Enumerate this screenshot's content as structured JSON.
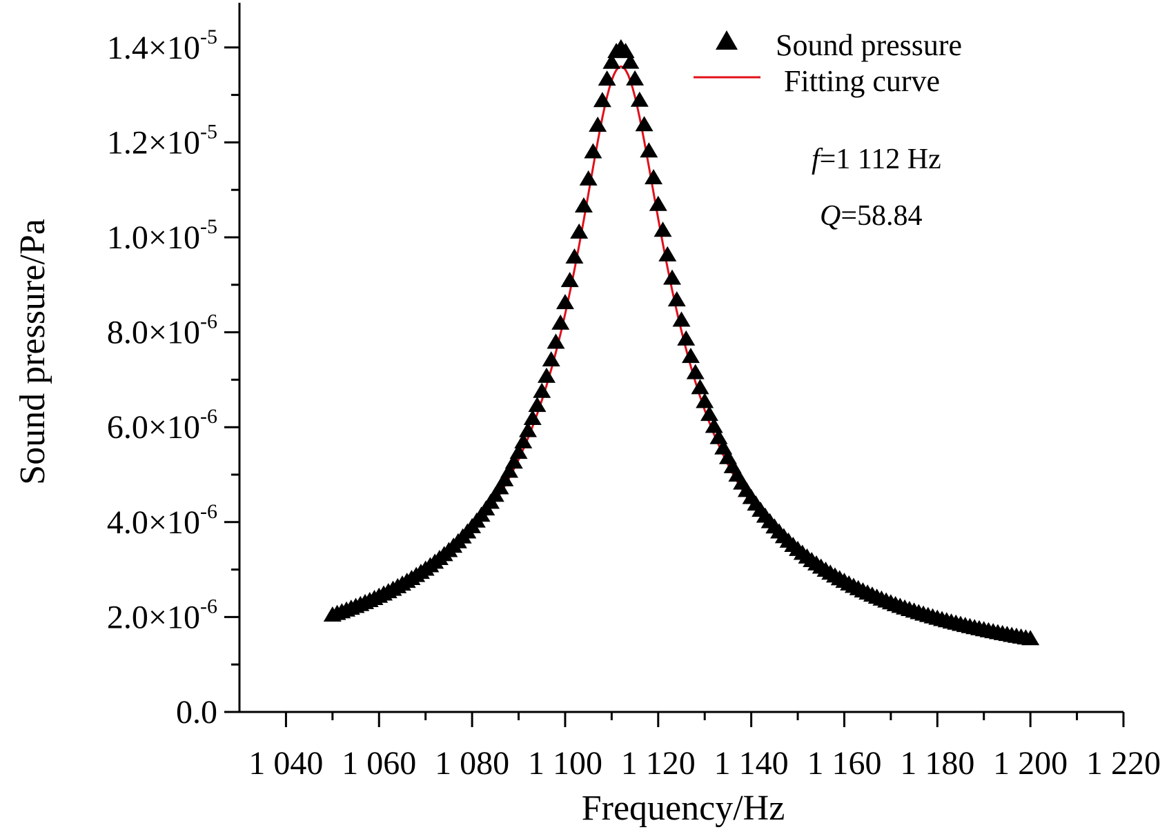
{
  "chart_data": {
    "type": "scatter",
    "title": "",
    "xlabel": "Frequency/Hz",
    "ylabel": "Sound pressure/Pa",
    "xlim": [
      1030,
      1220
    ],
    "ylim": [
      0,
      1.5e-05
    ],
    "x_ticks": [
      1040,
      1060,
      1080,
      1100,
      1120,
      1140,
      1160,
      1180,
      1200,
      1220
    ],
    "x_tick_labels": [
      "1 040",
      "1 060",
      "1 080",
      "1 100",
      "1 120",
      "1 140",
      "1 160",
      "1 180",
      "1 200",
      "1 220"
    ],
    "y_ticks": [
      0,
      2e-06,
      4e-06,
      6e-06,
      8e-06,
      1e-05,
      1.2e-05,
      1.4e-05
    ],
    "y_tick_labels": [
      {
        "mantissa": "0.0",
        "exponent": ""
      },
      {
        "mantissa": "2.0×10",
        "exponent": "-6"
      },
      {
        "mantissa": "4.0×10",
        "exponent": "-6"
      },
      {
        "mantissa": "6.0×10",
        "exponent": "-6"
      },
      {
        "mantissa": "8.0×10",
        "exponent": "-6"
      },
      {
        "mantissa": "1.0×10",
        "exponent": "-5"
      },
      {
        "mantissa": "1.2×10",
        "exponent": "-5"
      },
      {
        "mantissa": "1.4×10",
        "exponent": "-5"
      }
    ],
    "grid": false,
    "legend_position": "top-right",
    "series": [
      {
        "name": "Sound pressure",
        "kind": "markers",
        "marker": "triangle",
        "color": "#000000",
        "model": "resonance",
        "f0": 1112,
        "q": 58.84,
        "peak": 1.4e-05,
        "x_start": 1050,
        "x_end": 1200,
        "x_step": 1
      },
      {
        "name": "Fitting curve",
        "kind": "line",
        "color": "#e0101a",
        "model": "resonance",
        "f0": 1112,
        "q": 58.84,
        "peak": 1.36e-05,
        "x_start": 1050,
        "x_end": 1200,
        "x_step": 0.5
      }
    ],
    "annotations": [
      {
        "symbol": "f",
        "text": "=1 112 Hz"
      },
      {
        "symbol": "Q",
        "text": "=58.84"
      }
    ]
  }
}
